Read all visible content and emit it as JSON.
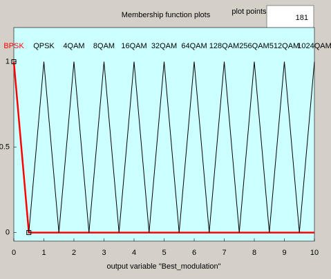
{
  "chart_data": {
    "type": "line",
    "title": "Membership function plots",
    "plot_points_label": "plot points:",
    "plot_points": 181,
    "xlabel": "output variable \"Best_modulation\"",
    "xlim": [
      0,
      10
    ],
    "ylim": [
      -0.05,
      1.2
    ],
    "xticks": [
      0,
      1,
      2,
      3,
      4,
      5,
      6,
      7,
      8,
      9,
      10
    ],
    "yticks": [
      0,
      0.5,
      1
    ],
    "series": [
      {
        "name": "BPSK",
        "color": "#ff0000",
        "x": [
          0,
          0.5,
          10
        ],
        "values": [
          1,
          0,
          0
        ]
      },
      {
        "name": "QPSK",
        "color": "#000000",
        "x": [
          0.5,
          1,
          1.5
        ],
        "values": [
          0,
          1,
          0
        ]
      },
      {
        "name": "4QAM",
        "color": "#000000",
        "x": [
          1.5,
          2,
          2.5
        ],
        "values": [
          0,
          1,
          0
        ]
      },
      {
        "name": "8QAM",
        "color": "#000000",
        "x": [
          2.5,
          3,
          3.5
        ],
        "values": [
          0,
          1,
          0
        ]
      },
      {
        "name": "16QAM",
        "color": "#000000",
        "x": [
          3.5,
          4,
          4.5
        ],
        "values": [
          0,
          1,
          0
        ]
      },
      {
        "name": "32QAM",
        "color": "#000000",
        "x": [
          4.5,
          5,
          5.5
        ],
        "values": [
          0,
          1,
          0
        ]
      },
      {
        "name": "64QAM",
        "color": "#000000",
        "x": [
          5.5,
          6,
          6.5
        ],
        "values": [
          0,
          1,
          0
        ]
      },
      {
        "name": "128QAM",
        "color": "#000000",
        "x": [
          6.5,
          7,
          7.5
        ],
        "values": [
          0,
          1,
          0
        ]
      },
      {
        "name": "256QAM",
        "color": "#000000",
        "x": [
          7.5,
          8,
          8.5
        ],
        "values": [
          0,
          1,
          0
        ]
      },
      {
        "name": "512QAM",
        "color": "#000000",
        "x": [
          8.5,
          9,
          9.5
        ],
        "values": [
          0,
          1,
          0
        ]
      },
      {
        "name": "1024QAM",
        "color": "#000000",
        "x": [
          9.5,
          10
        ],
        "values": [
          0,
          1
        ]
      }
    ]
  }
}
